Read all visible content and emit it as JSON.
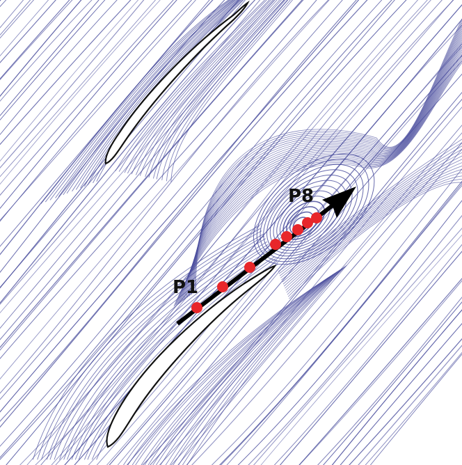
{
  "figure": {
    "colors": {
      "streamline": "#4b4f9e",
      "blade_outline": "#111111",
      "blade_fill": "#ffffff",
      "probe_line": "#000000",
      "probe_point": "#e8262a",
      "label": "#111111"
    },
    "labels": {
      "start_probe": "P1",
      "end_probe": "P8"
    },
    "probe_count": 8
  }
}
